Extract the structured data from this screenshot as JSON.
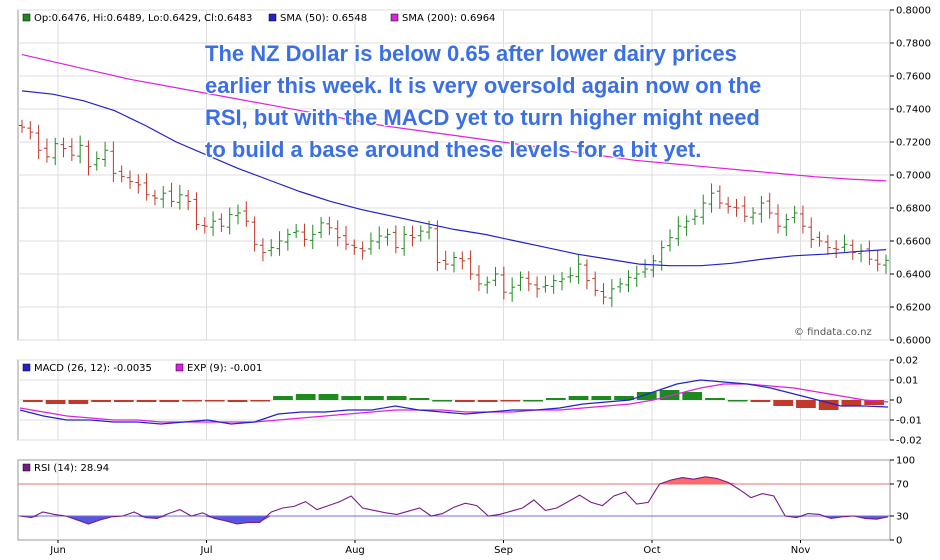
{
  "chart_data": [
    {
      "type": "candlestick",
      "legend": {
        "ohlc": "Op:0.6476, Hi:0.6489, Lo:0.6429, Cl:0.6483",
        "sma50": "SMA (50): 0.6548",
        "sma200": "SMA (200): 0.6964"
      },
      "colors": {
        "up": "#1e8a1e",
        "down": "#c0392b",
        "sma50": "#2222cc",
        "sma200": "#dd22dd"
      },
      "ylim": [
        0.6,
        0.8
      ],
      "yticks": [
        "0.6000",
        "0.6200",
        "0.6400",
        "0.6600",
        "0.6800",
        "0.7000",
        "0.7200",
        "0.7400",
        "0.7600",
        "0.7800",
        "0.8000"
      ],
      "xticks": [
        "Jun",
        "Jul",
        "Aug",
        "Sep",
        "Oct",
        "Nov"
      ],
      "close_series": [
        0.729,
        0.726,
        0.715,
        0.711,
        0.719,
        0.716,
        0.712,
        0.718,
        0.705,
        0.71,
        0.715,
        0.701,
        0.699,
        0.696,
        0.694,
        0.688,
        0.686,
        0.689,
        0.684,
        0.688,
        0.684,
        0.67,
        0.669,
        0.672,
        0.669,
        0.676,
        0.677,
        0.672,
        0.658,
        0.653,
        0.656,
        0.66,
        0.664,
        0.666,
        0.661,
        0.664,
        0.671,
        0.668,
        0.662,
        0.658,
        0.656,
        0.654,
        0.66,
        0.663,
        0.664,
        0.656,
        0.664,
        0.662,
        0.666,
        0.668,
        0.647,
        0.646,
        0.65,
        0.648,
        0.64,
        0.634,
        0.635,
        0.64,
        0.629,
        0.632,
        0.638,
        0.634,
        0.631,
        0.633,
        0.636,
        0.637,
        0.639,
        0.646,
        0.636,
        0.63,
        0.626,
        0.631,
        0.634,
        0.638,
        0.64,
        0.643,
        0.648,
        0.656,
        0.662,
        0.669,
        0.672,
        0.675,
        0.683,
        0.689,
        0.683,
        0.681,
        0.68,
        0.675,
        0.677,
        0.683,
        0.677,
        0.669,
        0.673,
        0.677,
        0.669,
        0.661,
        0.66,
        0.656,
        0.655,
        0.658,
        0.653,
        0.654,
        0.649,
        0.646,
        0.6483
      ],
      "sma50_series": [
        0.751,
        0.749,
        0.745,
        0.739,
        0.73,
        0.72,
        0.712,
        0.704,
        0.697,
        0.69,
        0.684,
        0.679,
        0.675,
        0.671,
        0.667,
        0.664,
        0.66,
        0.656,
        0.652,
        0.649,
        0.646,
        0.645,
        0.645,
        0.6465,
        0.649,
        0.651,
        0.652,
        0.6535,
        0.6548
      ],
      "sma200_series": [
        0.773,
        0.768,
        0.763,
        0.758,
        0.754,
        0.75,
        0.746,
        0.742,
        0.738,
        0.734,
        0.73,
        0.727,
        0.724,
        0.721,
        0.718,
        0.715,
        0.712,
        0.709,
        0.707,
        0.705,
        0.703,
        0.701,
        0.699,
        0.6975,
        0.6964
      ]
    },
    {
      "type": "macd",
      "legend": {
        "macd": "MACD (26, 12): -0.0035",
        "exp": "EXP (9): -0.001"
      },
      "colors": {
        "macd": "#2222cc",
        "exp": "#dd22dd",
        "hist_pos": "#1e8a1e",
        "hist_neg": "#c0392b"
      },
      "ylim": [
        -0.02,
        0.02
      ],
      "yticks": [
        "0.02",
        "0.01",
        "0",
        "-0.01",
        "-0.02"
      ],
      "macd_series": [
        -0.005,
        -0.008,
        -0.01,
        -0.01,
        -0.011,
        -0.011,
        -0.012,
        -0.011,
        -0.01,
        -0.012,
        -0.011,
        -0.007,
        -0.006,
        -0.006,
        -0.005,
        -0.005,
        -0.003,
        -0.005,
        -0.006,
        -0.007,
        -0.006,
        -0.005,
        -0.005,
        -0.004,
        -0.002,
        -0.001,
        0.0,
        0.004,
        0.008,
        0.01,
        0.009,
        0.008,
        0.006,
        0.003,
        0.0,
        -0.003,
        -0.003,
        -0.0035
      ],
      "exp_series": [
        -0.004,
        -0.006,
        -0.008,
        -0.009,
        -0.01,
        -0.01,
        -0.011,
        -0.011,
        -0.011,
        -0.011,
        -0.011,
        -0.01,
        -0.009,
        -0.008,
        -0.007,
        -0.006,
        -0.005,
        -0.005,
        -0.005,
        -0.006,
        -0.006,
        -0.006,
        -0.005,
        -0.005,
        -0.004,
        -0.003,
        -0.002,
        0.0,
        0.003,
        0.006,
        0.008,
        0.008,
        0.007,
        0.006,
        0.004,
        0.002,
        0.0,
        -0.001
      ],
      "histogram": [
        -0.001,
        -0.002,
        -0.002,
        -0.001,
        -0.001,
        -0.001,
        -0.001,
        -0.0005,
        -0.0005,
        -0.001,
        -0.0005,
        0.002,
        0.003,
        0.003,
        0.002,
        0.002,
        0.002,
        0.001,
        0.0,
        -0.001,
        -0.001,
        -0.0005,
        0.0,
        0.001,
        0.002,
        0.002,
        0.002,
        0.004,
        0.005,
        0.004,
        0.001,
        0.0,
        -0.001,
        -0.003,
        -0.004,
        -0.005,
        -0.003,
        -0.0025
      ]
    },
    {
      "type": "rsi",
      "legend": {
        "rsi": "RSI (14): 28.94"
      },
      "colors": {
        "line": "#7a1a8a",
        "overbought": "#ff5a5a",
        "oversold": "#4444dd"
      },
      "ylim": [
        0,
        100
      ],
      "yticks": [
        "100",
        "70",
        "30",
        "0"
      ],
      "levels": [
        70,
        30
      ],
      "rsi_series": [
        30,
        28,
        35,
        32,
        30,
        25,
        20,
        25,
        29,
        30,
        35,
        28,
        27,
        33,
        38,
        30,
        34,
        27,
        24,
        20,
        22,
        22,
        35,
        40,
        42,
        48,
        38,
        43,
        48,
        55,
        40,
        37,
        34,
        32,
        36,
        40,
        30,
        33,
        41,
        46,
        43,
        30,
        32,
        36,
        40,
        50,
        37,
        40,
        48,
        56,
        47,
        43,
        55,
        60,
        45,
        47,
        70,
        75,
        78,
        76,
        79,
        77,
        72,
        63,
        53,
        58,
        55,
        30,
        28,
        33,
        32,
        27,
        29,
        30,
        27,
        26,
        28.94
      ]
    }
  ],
  "annotation": {
    "lines": [
      "The NZ Dollar is below 0.65 after lower dairy prices",
      "earlier this week. It is very oversold again now on the",
      "RSI, but with the MACD yet to turn higher might need",
      "to build a base around these levels for a bit yet."
    ]
  },
  "watermark": "© findata.co.nz"
}
